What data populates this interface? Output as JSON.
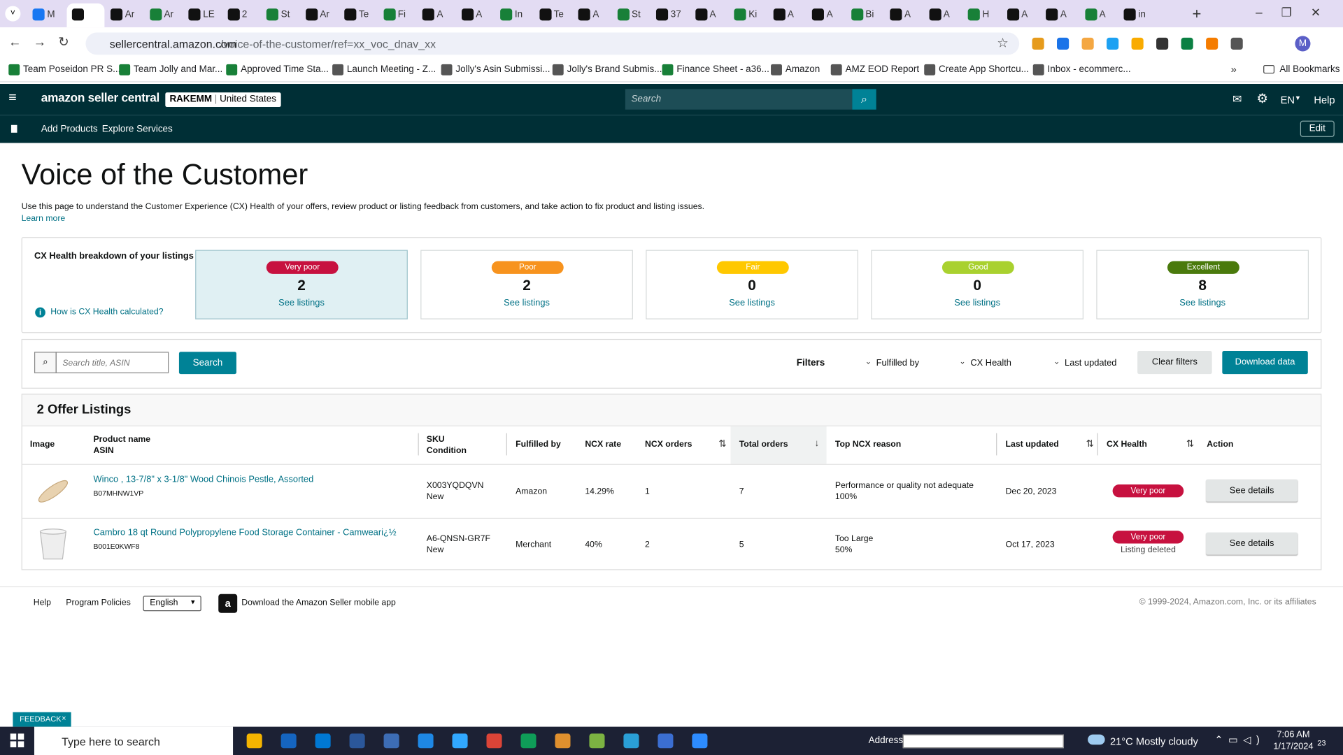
{
  "browser": {
    "tabs": [
      "M",
      "",
      "Ar",
      "Ar",
      "LE",
      "2",
      "St",
      "Ar",
      "Te",
      "Fi",
      "A",
      "A",
      "In",
      "Te",
      "A",
      "St",
      "37",
      "A",
      "Ki",
      "A",
      "A",
      "Bi",
      "A",
      "A",
      "H",
      "A",
      "A",
      "A",
      "in"
    ],
    "url_host": "sellercentral.amazon.com",
    "url_path": "/voice-of-the-customer/ref=xx_voc_dnav_xx",
    "bookmarks": [
      "Team Poseidon PR S...",
      "Team Jolly and Mar...",
      "Approved Time Sta...",
      "Launch Meeting - Z...",
      "Jolly's Asin Submissi...",
      "Jolly's Brand Submis...",
      "Finance Sheet - a36...",
      "Amazon",
      "AMZ EOD Report",
      "Create App Shortcu...",
      "Inbox - ecommerc..."
    ],
    "all_bookmarks": "All Bookmarks",
    "profile": "M"
  },
  "header": {
    "logo": "amazon seller central",
    "account": "RAKEMM",
    "marketplace": "United States",
    "search_placeholder": "Search",
    "language": "EN",
    "help": "Help"
  },
  "nav": {
    "items": [
      "Add Products",
      "Explore Services"
    ],
    "edit": "Edit"
  },
  "page": {
    "title": "Voice of the Customer",
    "description": "Use this page to understand the Customer Experience (CX) Health of your offers, review product or listing feedback from customers, and take action to fix product and listing issues.",
    "learn_more": "Learn more"
  },
  "cx_health": {
    "heading": "CX Health breakdown of your listings",
    "help_link": "How is CX Health calculated?",
    "cards": [
      {
        "label": "Very poor",
        "count": 2,
        "link": "See listings",
        "color": "#c7113f"
      },
      {
        "label": "Poor",
        "count": 2,
        "link": "See listings",
        "color": "#f7931e"
      },
      {
        "label": "Fair",
        "count": 0,
        "link": "See listings",
        "color": "#ffc800"
      },
      {
        "label": "Good",
        "count": 0,
        "link": "See listings",
        "color": "#a9d12f"
      },
      {
        "label": "Excellent",
        "count": 8,
        "link": "See listings",
        "color": "#4a7a0c"
      }
    ]
  },
  "filters": {
    "search_placeholder": "Search title, ASIN",
    "search_button": "Search",
    "filters_label": "Filters",
    "dropdowns": [
      "Fulfilled by",
      "CX Health",
      "Last updated"
    ],
    "clear": "Clear filters",
    "download": "Download data"
  },
  "table": {
    "title": "2 Offer Listings",
    "columns": [
      [
        "Image"
      ],
      [
        "Product name",
        "ASIN"
      ],
      [
        "SKU",
        "Condition"
      ],
      [
        "Fulfilled by"
      ],
      [
        "NCX rate"
      ],
      [
        "NCX orders"
      ],
      [
        "Total orders"
      ],
      [
        "Top NCX reason"
      ],
      [
        "Last updated"
      ],
      [
        "CX Health"
      ],
      [
        "Action"
      ]
    ],
    "rows": [
      {
        "product": "Winco , 13-7/8\" x 3-1/8\" Wood Chinois Pestle, Assorted",
        "asin": "B07MHNW1VP",
        "sku": "X003YQDQVN",
        "condition": "New",
        "fulfilled_by": "Amazon",
        "ncx_rate": "14.29%",
        "ncx_orders": 1,
        "total_orders": 7,
        "reason": "Performance or quality not adequate",
        "reason_share": "100%",
        "last_updated": "Dec 20, 2023",
        "cx_health": "Very poor",
        "action": "See details"
      },
      {
        "product": "Cambro 18 qt Round Polypropylene Food Storage Container - Camweari¿½",
        "asin": "B001E0KWF8",
        "sku": "A6-QNSN-GR7F",
        "condition": "New",
        "fulfilled_by": "Merchant",
        "ncx_rate": "40%",
        "ncx_orders": 2,
        "total_orders": 5,
        "reason": "Too Large",
        "reason_share": "50%",
        "last_updated": "Oct 17, 2023",
        "cx_health": "Very poor",
        "status_note": "Listing deleted",
        "action": "See details"
      }
    ]
  },
  "footer": {
    "links": [
      "Help",
      "Program Policies"
    ],
    "language": "English",
    "app": "Download the Amazon Seller mobile app",
    "copyright": "© 1999-2024, Amazon.com, Inc. or its affiliates"
  },
  "feedback": "FEEDBACK",
  "taskbar": {
    "search": "Type here to search",
    "address_label": "Address",
    "weather": "21°C Mostly cloudy",
    "time": "7:06 AM",
    "date": "1/17/2024",
    "notifications": "23"
  }
}
